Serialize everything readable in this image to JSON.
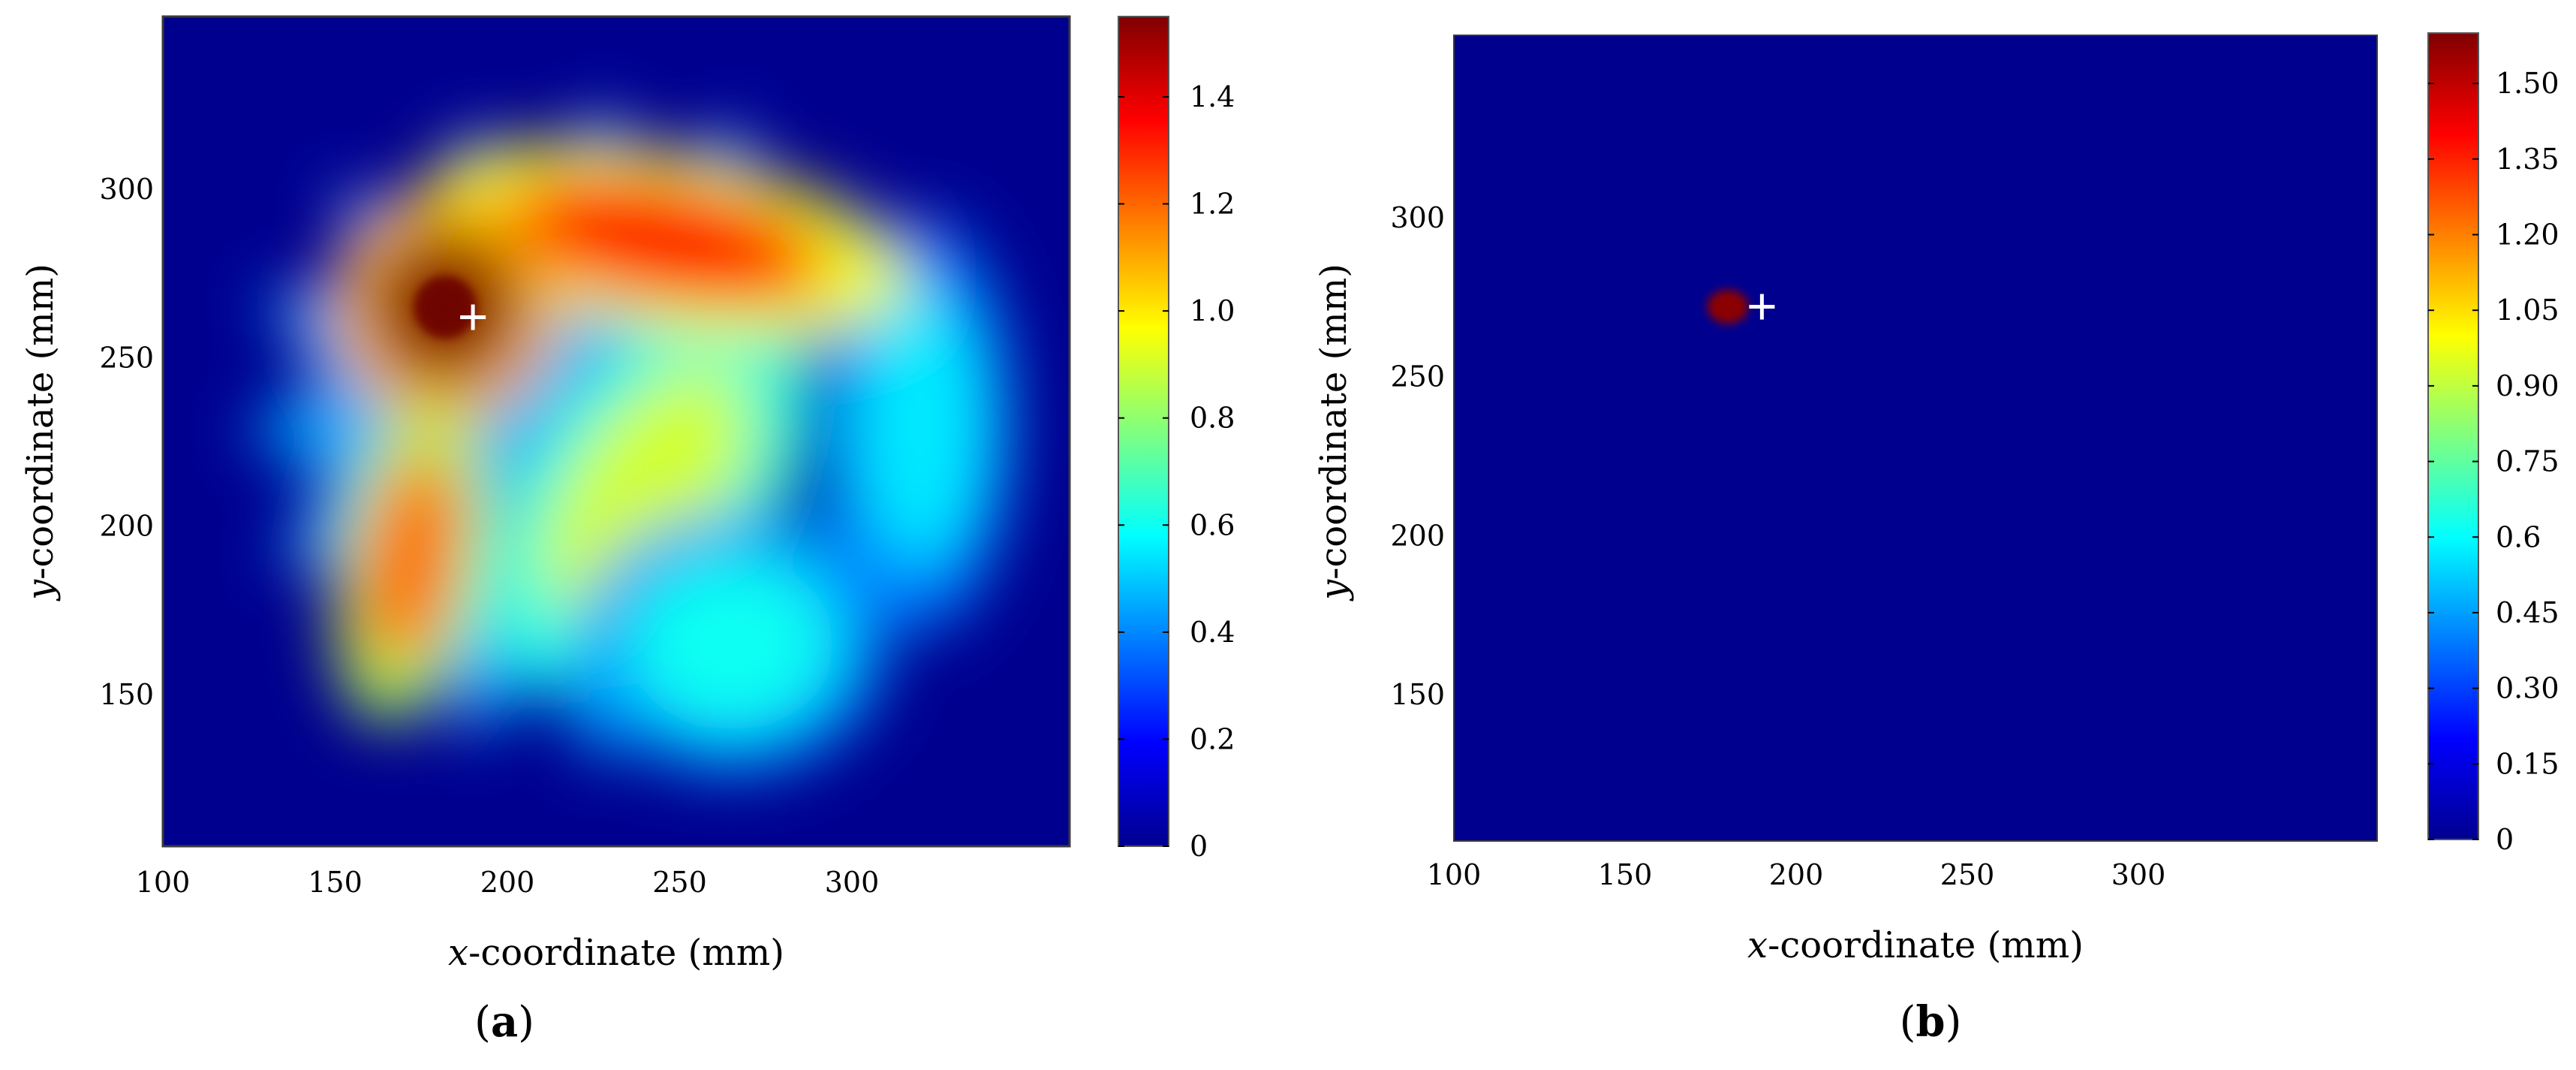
{
  "chart_data": [
    {
      "type": "heatmap",
      "panel_label": "a",
      "xlabel_var": "x",
      "xlabel_rest": "-coordinate (mm)",
      "ylabel_var": "y",
      "ylabel_rest": "-coordinate (mm)",
      "xlim": [
        100,
        360
      ],
      "ylim": [
        105,
        350
      ],
      "x_ticks": [
        100,
        150,
        200,
        250,
        300
      ],
      "y_ticks": [
        150,
        200,
        250,
        300
      ],
      "colorbar": {
        "ticks": [
          0,
          0.2,
          0.4,
          0.6,
          0.8,
          1.0,
          1.2,
          1.4
        ],
        "tick_labels": [
          "0",
          "0.2",
          "0.4",
          "0.6",
          "0.8",
          "1.0",
          "1.2",
          "1.4"
        ],
        "range": [
          0,
          1.55
        ]
      },
      "colormap": "jet",
      "marker": {
        "symbol": "+",
        "x": 190,
        "y": 262
      },
      "background_value": 0,
      "features": [
        {
          "name": "left-hot-spot",
          "x": 182,
          "y": 265,
          "value": 1.55
        },
        {
          "name": "upper-right-hot-spot",
          "x": 245,
          "y": 285,
          "value": 1.35
        },
        {
          "name": "lower-left-hot-spot",
          "x": 172,
          "y": 190,
          "value": 1.2
        },
        {
          "name": "center-band",
          "x": 240,
          "y": 210,
          "value": 0.9
        },
        {
          "name": "lower-right-lobe",
          "x": 265,
          "y": 165,
          "value": 0.6
        },
        {
          "name": "right-lobe",
          "x": 320,
          "y": 230,
          "value": 0.55
        }
      ],
      "spikes": [
        {
          "x": 188,
          "y": 318
        },
        {
          "x": 228,
          "y": 325
        },
        {
          "x": 268,
          "y": 320
        },
        {
          "x": 302,
          "y": 296
        },
        {
          "x": 328,
          "y": 262
        },
        {
          "x": 328,
          "y": 188
        },
        {
          "x": 307,
          "y": 165
        },
        {
          "x": 266,
          "y": 134
        },
        {
          "x": 228,
          "y": 128
        },
        {
          "x": 188,
          "y": 136
        },
        {
          "x": 152,
          "y": 160
        },
        {
          "x": 132,
          "y": 190
        },
        {
          "x": 123,
          "y": 228
        },
        {
          "x": 128,
          "y": 268
        },
        {
          "x": 150,
          "y": 300
        }
      ]
    },
    {
      "type": "heatmap",
      "panel_label": "b",
      "xlabel_var": "x",
      "xlabel_rest": "-coordinate (mm)",
      "ylabel_var": "y",
      "ylabel_rest": "-coordinate (mm)",
      "xlim": [
        100,
        360
      ],
      "ylim": [
        105,
        350
      ],
      "x_ticks": [
        100,
        150,
        200,
        250,
        300
      ],
      "y_ticks": [
        150,
        200,
        250,
        300
      ],
      "colorbar": {
        "ticks": [
          0,
          0.15,
          0.3,
          0.45,
          0.6,
          0.75,
          0.9,
          1.05,
          1.2,
          1.35,
          1.5
        ],
        "tick_labels": [
          "0",
          "0.15",
          "0.30",
          "0.45",
          "0.6",
          "0.75",
          "0.90",
          "1.05",
          "1.20",
          "1.35",
          "1.50"
        ],
        "range": [
          0,
          1.6
        ]
      },
      "colormap": "jet",
      "marker": {
        "symbol": "+",
        "x": 190,
        "y": 272
      },
      "background_value": 0,
      "features": [
        {
          "name": "single-hot-spot",
          "x": 180,
          "y": 272,
          "value": 1.6
        }
      ],
      "spikes": []
    }
  ]
}
